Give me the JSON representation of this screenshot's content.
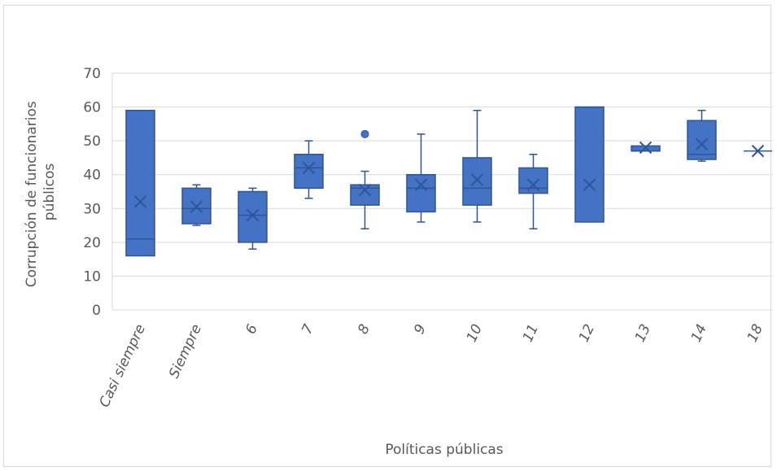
{
  "chart_data": {
    "type": "box",
    "xlabel": "Políticas públicas",
    "ylabel_lines": [
      "Corrupción de funcionarios",
      "públicos"
    ],
    "ylim": [
      0,
      70
    ],
    "yticks": [
      0,
      10,
      20,
      30,
      40,
      50,
      60,
      70
    ],
    "grid": true,
    "colors": {
      "box_fill": "#4472c4",
      "box_edge": "#2f5597",
      "grid": "#d9d9d9",
      "text": "#595959"
    },
    "categories": [
      "Casi siempre",
      "Siempre",
      "6",
      "7",
      "8",
      "9",
      "10",
      "11",
      "12",
      "13",
      "14",
      "18"
    ],
    "boxes": [
      {
        "category": "Casi siempre",
        "min": 16,
        "q1": 16,
        "median": 21,
        "q3": 59,
        "max": 59,
        "mean": 32,
        "outliers": []
      },
      {
        "category": "Siempre",
        "min": 25,
        "q1": 25.5,
        "median": 30,
        "q3": 36,
        "max": 37,
        "mean": 30.5,
        "outliers": []
      },
      {
        "category": "6",
        "min": 18,
        "q1": 20,
        "median": 28,
        "q3": 35,
        "max": 36,
        "mean": 28,
        "outliers": []
      },
      {
        "category": "7",
        "min": 33,
        "q1": 36,
        "median": 42,
        "q3": 46,
        "max": 50,
        "mean": 42,
        "outliers": []
      },
      {
        "category": "8",
        "min": 24,
        "q1": 31,
        "median": 36,
        "q3": 37,
        "max": 41,
        "mean": 35.5,
        "outliers": [
          52
        ]
      },
      {
        "category": "9",
        "min": 26,
        "q1": 29,
        "median": 36,
        "q3": 40,
        "max": 52,
        "mean": 37,
        "outliers": []
      },
      {
        "category": "10",
        "min": 26,
        "q1": 31,
        "median": 36,
        "q3": 45,
        "max": 59,
        "mean": 38.5,
        "outliers": []
      },
      {
        "category": "11",
        "min": 24,
        "q1": 34.5,
        "median": 36,
        "q3": 42,
        "max": 46,
        "mean": 37,
        "outliers": []
      },
      {
        "category": "12",
        "min": 26,
        "q1": 26,
        "median": 60,
        "q3": 60,
        "max": 60,
        "mean": 37,
        "outliers": []
      },
      {
        "category": "13",
        "min": 47,
        "q1": 47,
        "median": 47,
        "q3": 48.5,
        "max": 48.5,
        "mean": 48,
        "outliers": []
      },
      {
        "category": "14",
        "min": 44,
        "q1": 44.5,
        "median": 46,
        "q3": 56,
        "max": 59,
        "mean": 49,
        "outliers": []
      },
      {
        "category": "18",
        "min": 47,
        "q1": 47,
        "median": 47,
        "q3": 47,
        "max": 47,
        "mean": 47,
        "outliers": []
      }
    ]
  }
}
